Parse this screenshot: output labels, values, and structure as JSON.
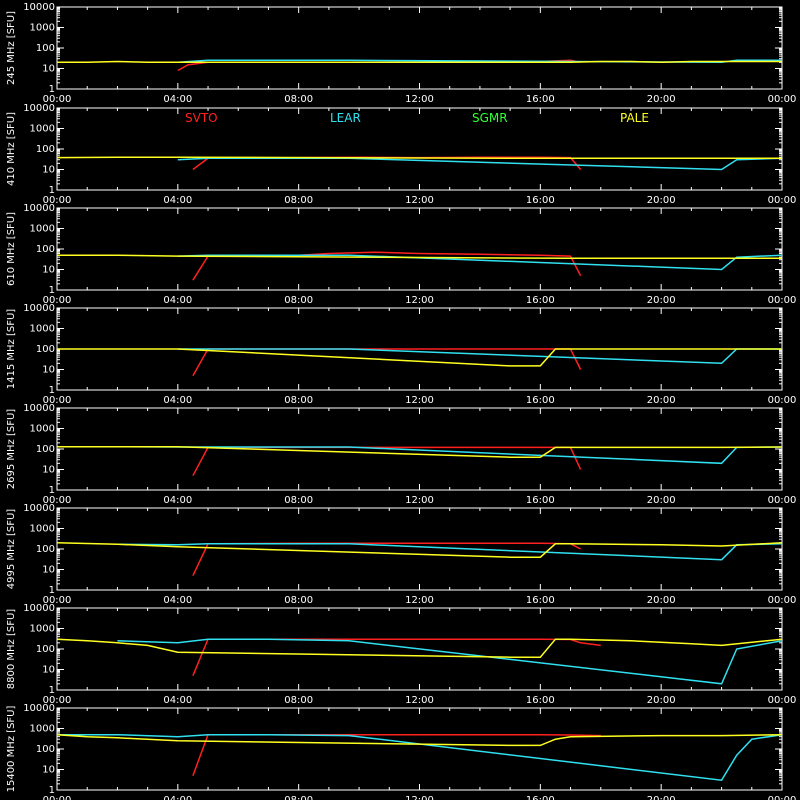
{
  "chart_data": [
    {
      "type": "line",
      "ylabel": "245 MHz [SFU]",
      "ylim": [
        1,
        10000
      ],
      "yscale": "log",
      "xlim": [
        "00:00",
        "24:00"
      ],
      "x_ticks": [
        "00:00",
        "04:00",
        "08:00",
        "12:00",
        "16:00",
        "20:00",
        "00:00"
      ],
      "y_ticks": [
        "1",
        "10",
        "100",
        "1000",
        "10000"
      ],
      "series": [
        {
          "name": "SVTO",
          "color": "#ff2020",
          "x": [
            "04:00",
            "04:20",
            "05:00",
            "08:00",
            "09:30",
            "11:00",
            "12:00",
            "14:00",
            "15:00",
            "16:00",
            "17:00",
            "17:20"
          ],
          "y": [
            8,
            15,
            20,
            20,
            20,
            20,
            20,
            20,
            20,
            22,
            25,
            20
          ]
        },
        {
          "name": "LEAR",
          "color": "#30e0f0",
          "x": [
            "04:00",
            "05:00",
            "06:00",
            "07:00",
            "08:00",
            "09:00",
            "09:40",
            "22:00",
            "22:30",
            "24:00"
          ],
          "y": [
            20,
            25,
            25,
            25,
            25,
            25,
            25,
            20,
            25,
            25
          ]
        },
        {
          "name": "SGMR",
          "color": "#30ff30",
          "x": [],
          "y": []
        },
        {
          "name": "PALE",
          "color": "#ffff20",
          "x": [
            "00:00",
            "01:00",
            "02:00",
            "03:00",
            "04:00",
            "17:00",
            "18:00",
            "19:00",
            "20:00",
            "21:00",
            "22:00",
            "23:00",
            "24:00"
          ],
          "y": [
            20,
            20,
            22,
            20,
            20,
            20,
            22,
            22,
            20,
            22,
            22,
            22,
            22
          ]
        }
      ]
    },
    {
      "type": "line",
      "ylabel": "410 MHz [SFU]",
      "ylim": [
        1,
        10000
      ],
      "yscale": "log",
      "xlim": [
        "00:00",
        "24:00"
      ],
      "x_ticks": [
        "00:00",
        "04:00",
        "08:00",
        "12:00",
        "16:00",
        "20:00",
        "00:00"
      ],
      "y_ticks": [
        "1",
        "10",
        "100",
        "1000",
        "10000"
      ],
      "legend": [
        "SVTO",
        "LEAR",
        "SGMR",
        "PALE"
      ],
      "series": [
        {
          "name": "SVTO",
          "color": "#ff2020",
          "x": [
            "04:30",
            "05:00",
            "08:00",
            "10:00",
            "12:00",
            "14:00",
            "16:00",
            "17:00",
            "17:20"
          ],
          "y": [
            10,
            35,
            38,
            40,
            38,
            40,
            40,
            38,
            10
          ]
        },
        {
          "name": "LEAR",
          "color": "#30e0f0",
          "x": [
            "04:00",
            "05:00",
            "07:00",
            "09:40",
            "22:00",
            "22:30",
            "24:00"
          ],
          "y": [
            30,
            35,
            35,
            35,
            10,
            30,
            35
          ]
        },
        {
          "name": "SGMR",
          "color": "#30ff30",
          "x": [],
          "y": []
        },
        {
          "name": "PALE",
          "color": "#ffff20",
          "x": [
            "00:00",
            "02:00",
            "04:00",
            "16:00",
            "18:00",
            "20:00",
            "22:00",
            "24:00"
          ],
          "y": [
            38,
            40,
            40,
            35,
            35,
            35,
            35,
            35
          ]
        }
      ]
    },
    {
      "type": "line",
      "ylabel": "610 MHz [SFU]",
      "ylim": [
        1,
        10000
      ],
      "yscale": "log",
      "xlim": [
        "00:00",
        "24:00"
      ],
      "x_ticks": [
        "00:00",
        "04:00",
        "08:00",
        "12:00",
        "16:00",
        "20:00",
        "00:00"
      ],
      "y_ticks": [
        "1",
        "10",
        "100",
        "1000",
        "10000"
      ],
      "series": [
        {
          "name": "SVTO",
          "color": "#ff2020",
          "x": [
            "04:30",
            "05:00",
            "08:00",
            "09:00",
            "10:30",
            "12:00",
            "14:00",
            "16:00",
            "17:00",
            "17:20"
          ],
          "y": [
            3,
            45,
            50,
            60,
            70,
            60,
            55,
            50,
            45,
            5
          ]
        },
        {
          "name": "LEAR",
          "color": "#30e0f0",
          "x": [
            "04:00",
            "05:00",
            "07:00",
            "09:40",
            "22:00",
            "22:30",
            "24:00"
          ],
          "y": [
            45,
            50,
            50,
            50,
            10,
            40,
            50
          ]
        },
        {
          "name": "SGMR",
          "color": "#30ff30",
          "x": [],
          "y": []
        },
        {
          "name": "PALE",
          "color": "#ffff20",
          "x": [
            "00:00",
            "02:00",
            "04:00",
            "17:00",
            "18:00",
            "20:00",
            "22:00",
            "24:00"
          ],
          "y": [
            50,
            50,
            45,
            35,
            35,
            35,
            35,
            35
          ]
        }
      ]
    },
    {
      "type": "line",
      "ylabel": "1415 MHz [SFU]",
      "ylim": [
        1,
        10000
      ],
      "yscale": "log",
      "xlim": [
        "00:00",
        "24:00"
      ],
      "x_ticks": [
        "00:00",
        "04:00",
        "08:00",
        "12:00",
        "16:00",
        "20:00",
        "00:00"
      ],
      "y_ticks": [
        "1",
        "10",
        "100",
        "1000",
        "10000"
      ],
      "series": [
        {
          "name": "SVTO",
          "color": "#ff2020",
          "x": [
            "04:30",
            "05:00",
            "08:00",
            "12:00",
            "14:00",
            "16:00",
            "17:00",
            "17:20"
          ],
          "y": [
            5,
            100,
            100,
            100,
            100,
            100,
            100,
            10
          ]
        },
        {
          "name": "LEAR",
          "color": "#30e0f0",
          "x": [
            "04:00",
            "05:00",
            "07:00",
            "09:40",
            "22:00",
            "22:30",
            "24:00"
          ],
          "y": [
            100,
            100,
            100,
            100,
            20,
            100,
            100
          ]
        },
        {
          "name": "SGMR",
          "color": "#30ff30",
          "x": [],
          "y": []
        },
        {
          "name": "PALE",
          "color": "#ffff20",
          "x": [
            "00:00",
            "02:00",
            "04:00",
            "15:00",
            "16:00",
            "16:30",
            "17:00",
            "20:00",
            "22:00",
            "24:00"
          ],
          "y": [
            100,
            100,
            100,
            15,
            15,
            100,
            100,
            100,
            100,
            100
          ]
        }
      ]
    },
    {
      "type": "line",
      "ylabel": "2695 MHz [SFU]",
      "ylim": [
        1,
        10000
      ],
      "yscale": "log",
      "xlim": [
        "00:00",
        "24:00"
      ],
      "x_ticks": [
        "00:00",
        "04:00",
        "08:00",
        "12:00",
        "16:00",
        "20:00",
        "00:00"
      ],
      "y_ticks": [
        "1",
        "10",
        "100",
        "1000",
        "10000"
      ],
      "series": [
        {
          "name": "SVTO",
          "color": "#ff2020",
          "x": [
            "04:30",
            "05:00",
            "08:00",
            "09:00",
            "12:00",
            "14:00",
            "16:00",
            "17:00",
            "17:20"
          ],
          "y": [
            5,
            120,
            120,
            120,
            120,
            120,
            120,
            120,
            10
          ]
        },
        {
          "name": "LEAR",
          "color": "#30e0f0",
          "x": [
            "02:00",
            "04:00",
            "05:00",
            "07:00",
            "09:40",
            "22:00",
            "22:30",
            "24:00"
          ],
          "y": [
            130,
            125,
            125,
            125,
            125,
            20,
            120,
            125
          ]
        },
        {
          "name": "SGMR",
          "color": "#30ff30",
          "x": [],
          "y": []
        },
        {
          "name": "PALE",
          "color": "#ffff20",
          "x": [
            "00:00",
            "02:00",
            "04:00",
            "15:00",
            "16:00",
            "16:30",
            "17:00",
            "20:00",
            "22:00",
            "24:00"
          ],
          "y": [
            130,
            130,
            130,
            40,
            40,
            120,
            120,
            120,
            120,
            125
          ]
        }
      ]
    },
    {
      "type": "line",
      "ylabel": "4995 MHz [SFU]",
      "ylim": [
        1,
        10000
      ],
      "yscale": "log",
      "xlim": [
        "00:00",
        "24:00"
      ],
      "x_ticks": [
        "00:00",
        "04:00",
        "08:00",
        "12:00",
        "16:00",
        "20:00",
        "00:00"
      ],
      "y_ticks": [
        "1",
        "10",
        "100",
        "1000",
        "10000"
      ],
      "series": [
        {
          "name": "SVTO",
          "color": "#ff2020",
          "x": [
            "04:30",
            "05:00",
            "08:00",
            "09:00",
            "12:00",
            "14:00",
            "16:00",
            "17:00",
            "17:20"
          ],
          "y": [
            5,
            180,
            190,
            190,
            190,
            190,
            190,
            180,
            100
          ]
        },
        {
          "name": "LEAR",
          "color": "#30e0f0",
          "x": [
            "02:00",
            "04:00",
            "05:00",
            "07:00",
            "09:40",
            "22:00",
            "22:30",
            "24:00"
          ],
          "y": [
            170,
            160,
            180,
            180,
            180,
            30,
            160,
            180
          ]
        },
        {
          "name": "SGMR",
          "color": "#30ff30",
          "x": [],
          "y": []
        },
        {
          "name": "PALE",
          "color": "#ffff20",
          "x": [
            "00:00",
            "02:00",
            "04:00",
            "15:00",
            "16:00",
            "16:30",
            "17:00",
            "20:00",
            "22:00",
            "24:00"
          ],
          "y": [
            200,
            170,
            130,
            40,
            40,
            180,
            180,
            160,
            140,
            200
          ]
        }
      ]
    },
    {
      "type": "line",
      "ylabel": "8800 MHz [SFU]",
      "ylim": [
        1,
        10000
      ],
      "yscale": "log",
      "xlim": [
        "00:00",
        "24:00"
      ],
      "x_ticks": [
        "00:00",
        "04:00",
        "08:00",
        "12:00",
        "16:00",
        "20:00",
        "00:00"
      ],
      "y_ticks": [
        "1",
        "10",
        "100",
        "1000",
        "10000"
      ],
      "series": [
        {
          "name": "SVTO",
          "color": "#ff2020",
          "x": [
            "04:30",
            "05:00",
            "08:00",
            "09:00",
            "12:00",
            "14:00",
            "16:00",
            "17:00",
            "17:20",
            "18:00"
          ],
          "y": [
            5,
            300,
            300,
            300,
            300,
            300,
            300,
            290,
            200,
            150
          ]
        },
        {
          "name": "LEAR",
          "color": "#30e0f0",
          "x": [
            "02:00",
            "04:00",
            "05:00",
            "07:00",
            "09:40",
            "22:00",
            "22:30",
            "24:00"
          ],
          "y": [
            250,
            200,
            300,
            300,
            250,
            2,
            100,
            250
          ]
        },
        {
          "name": "SGMR",
          "color": "#30ff30",
          "x": [],
          "y": []
        },
        {
          "name": "PALE",
          "color": "#ffff20",
          "x": [
            "00:00",
            "01:00",
            "02:00",
            "03:00",
            "04:00",
            "15:00",
            "16:00",
            "16:30",
            "17:00",
            "19:00",
            "21:00",
            "22:00",
            "24:00"
          ],
          "y": [
            300,
            250,
            200,
            150,
            70,
            40,
            40,
            300,
            300,
            250,
            180,
            150,
            300
          ]
        }
      ]
    },
    {
      "type": "line",
      "ylabel": "15400 MHz [SFU]",
      "ylim": [
        1,
        10000
      ],
      "yscale": "log",
      "xlim": [
        "00:00",
        "24:00"
      ],
      "x_ticks": [
        "00:00",
        "04:00",
        "08:00",
        "12:00",
        "16:00",
        "20:00",
        "00:00"
      ],
      "y_ticks": [
        "1",
        "10",
        "100",
        "1000",
        "10000"
      ],
      "series": [
        {
          "name": "SVTO",
          "color": "#ff2020",
          "x": [
            "04:30",
            "05:00",
            "08:00",
            "09:00",
            "12:00",
            "14:00",
            "16:00",
            "17:00",
            "18:00"
          ],
          "y": [
            5,
            500,
            500,
            500,
            500,
            500,
            500,
            480,
            450
          ]
        },
        {
          "name": "LEAR",
          "color": "#30e0f0",
          "x": [
            "00:00",
            "02:00",
            "04:00",
            "05:00",
            "07:00",
            "09:40",
            "22:00",
            "22:30",
            "23:00",
            "24:00"
          ],
          "y": [
            500,
            500,
            400,
            500,
            500,
            450,
            3,
            50,
            300,
            500
          ]
        },
        {
          "name": "SGMR",
          "color": "#30ff30",
          "x": [],
          "y": []
        },
        {
          "name": "PALE",
          "color": "#ffff20",
          "x": [
            "00:00",
            "01:00",
            "02:00",
            "04:00",
            "15:00",
            "15:30",
            "16:00",
            "16:30",
            "17:00",
            "20:00",
            "22:00",
            "24:00"
          ],
          "y": [
            500,
            400,
            350,
            250,
            150,
            150,
            150,
            300,
            400,
            450,
            450,
            500
          ]
        }
      ]
    }
  ]
}
